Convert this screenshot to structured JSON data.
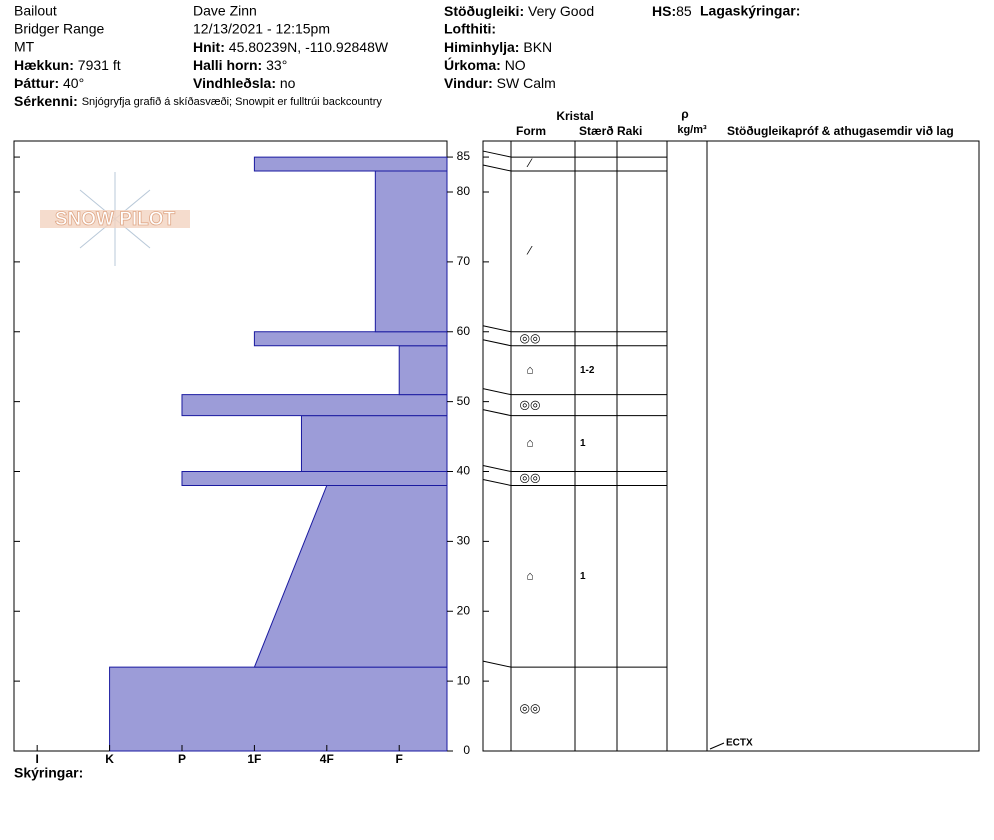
{
  "header": {
    "site": "Bailout",
    "range": "Bridger Range",
    "state": "MT",
    "elevation": {
      "label": "Hækkun:",
      "value": "7931 ft"
    },
    "aspect": {
      "label": "Þáttur:",
      "value": "40°"
    },
    "features": {
      "label": "Sérkenni:",
      "value": "Snjógryfja grafið á skíðasvæði; Snowpit er fulltrúi backcountry"
    },
    "observer": "Dave Zinn",
    "datetime": "12/13/2021 - 12:15pm",
    "coords": {
      "label": "Hnit:",
      "value": "45.80239N, -110.92848W"
    },
    "slope": {
      "label": "Halli horn:",
      "value": "33°"
    },
    "wind_loading": {
      "label": "Vindhleðsla:",
      "value": "no"
    },
    "stability": {
      "label": "Stöðugleiki:",
      "value": "Very Good"
    },
    "hs": {
      "label": "HS:",
      "value": "85"
    },
    "air_temp": {
      "label": "Lofthiti:"
    },
    "sky": {
      "label": "Himinhylja:",
      "value": "BKN"
    },
    "precip": {
      "label": "Úrkoma:",
      "value": "NO"
    },
    "wind": {
      "label": "Vindur:",
      "value": "SW Calm"
    },
    "layer_notes": "Lagaskýringar:"
  },
  "logo": "SNOW PILOT",
  "footer": "Skýringar:",
  "chart_data": {
    "type": "profile",
    "ylim": [
      0,
      87.3
    ],
    "yticks": [
      0,
      10,
      20,
      30,
      40,
      50,
      60,
      70,
      80,
      85
    ],
    "xlim": [
      -0.32,
      5.66
    ],
    "xticks": [
      {
        "value": 0,
        "label": "I"
      },
      {
        "value": 1,
        "label": "K"
      },
      {
        "value": 2,
        "label": "P"
      },
      {
        "value": 3,
        "label": "1F"
      },
      {
        "value": 4,
        "label": "4F"
      },
      {
        "value": 5,
        "label": "F"
      }
    ],
    "color": "#9c9cd8",
    "layers": [
      {
        "bottom": 0,
        "top": 12,
        "hardness": 1,
        "form": "◎◎"
      },
      {
        "bottom": 12,
        "top": 38,
        "hardness": 4,
        "hardness_bottom": 3,
        "form": "⌂",
        "size": "1"
      },
      {
        "bottom": 38,
        "top": 40,
        "hardness": 2,
        "form": "◎◎"
      },
      {
        "bottom": 40,
        "top": 48,
        "hardness": 3.65,
        "form": "⌂",
        "size": "1"
      },
      {
        "bottom": 48,
        "top": 51,
        "hardness": 2,
        "form": "◎◎"
      },
      {
        "bottom": 51,
        "top": 58,
        "hardness": 5,
        "form": "⌂",
        "size": "1-2"
      },
      {
        "bottom": 58,
        "top": 60,
        "hardness": 3,
        "form": "◎◎"
      },
      {
        "bottom": 60,
        "top": 83,
        "hardness": 4.67,
        "form": "⁄"
      },
      {
        "bottom": 83,
        "top": 85,
        "hardness": 3,
        "form": "⁄"
      }
    ],
    "columns": {
      "crystal": "Kristal",
      "form": "Form",
      "size": "Stærð",
      "moisture": "Raki",
      "rho": "ρ",
      "density_unit": "kg/m³",
      "tests": "Stöðugleikapróf & athugasemdir við lag"
    },
    "tests": [
      {
        "depth": 0,
        "label": "ECTX"
      }
    ]
  }
}
